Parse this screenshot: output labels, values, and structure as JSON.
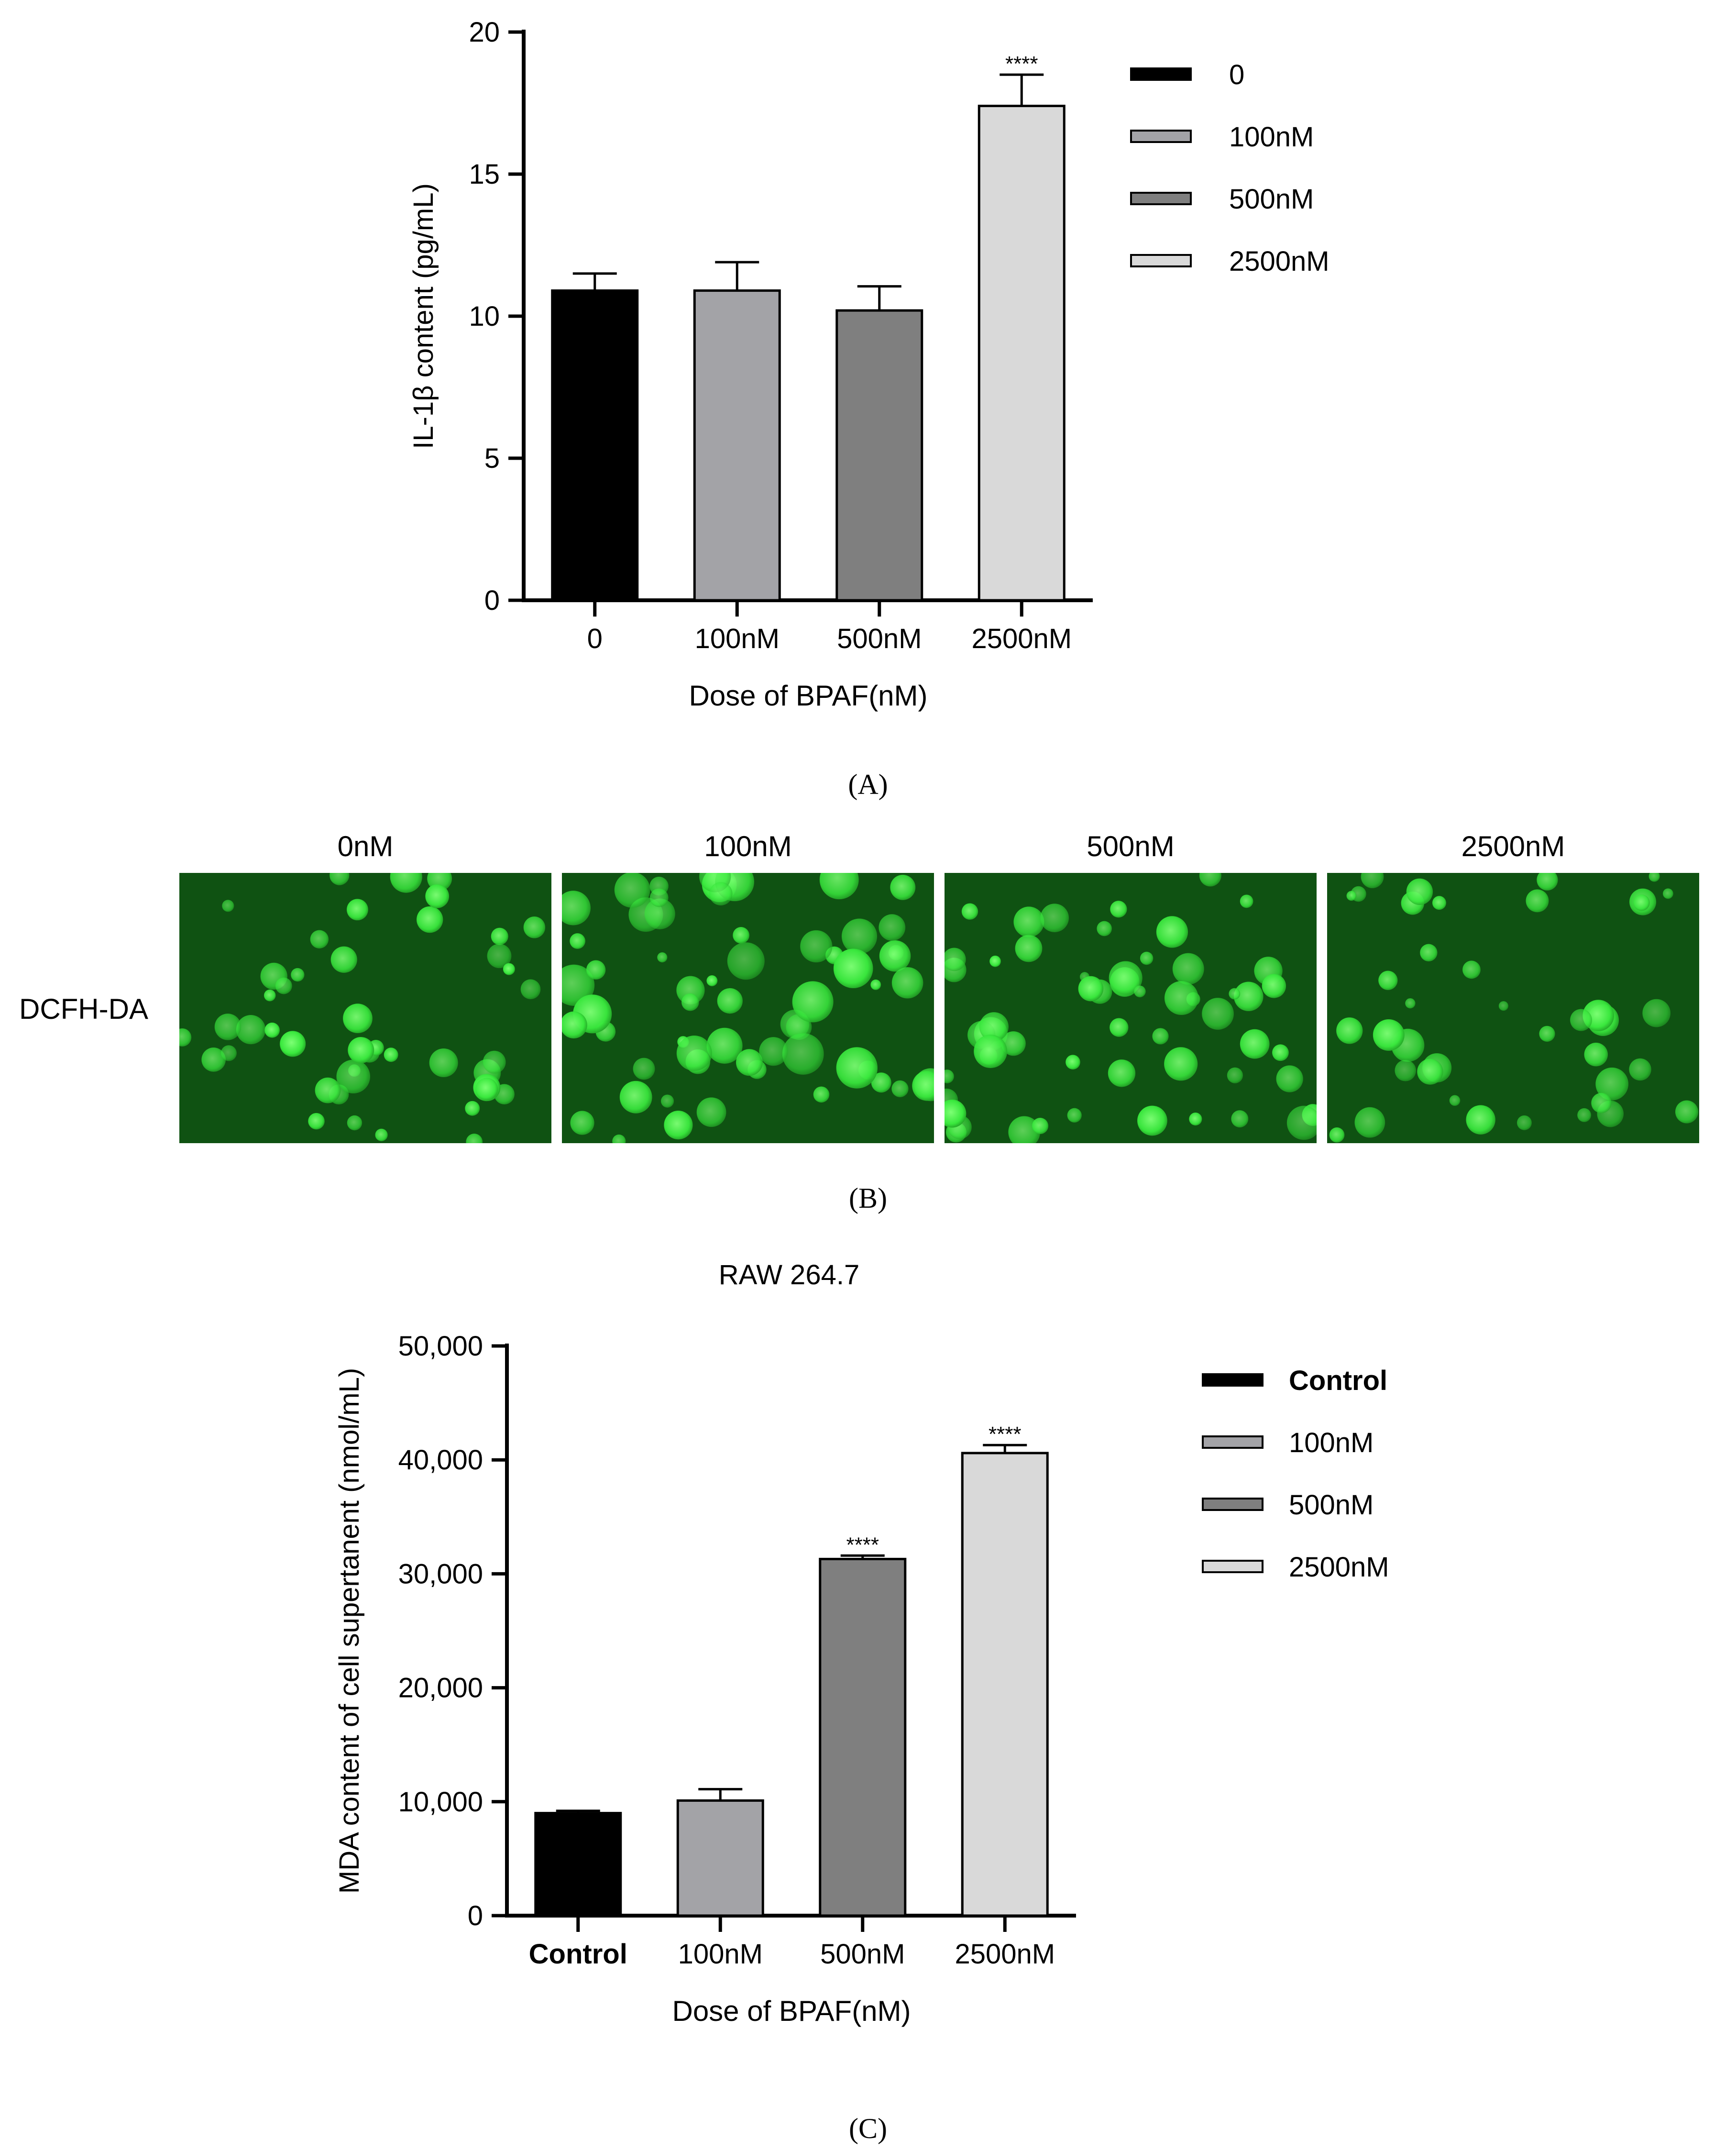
{
  "chart_data": [
    {
      "panel": "A",
      "type": "bar",
      "categories": [
        "0",
        "100nM",
        "500nM",
        "2500nM"
      ],
      "values": [
        10.9,
        10.9,
        10.2,
        17.4
      ],
      "errors": [
        0.6,
        1.0,
        0.85,
        1.1
      ],
      "significance": [
        "",
        "",
        "",
        "****"
      ],
      "colors": [
        "#000000",
        "#a3a3a7",
        "#7f7f7f",
        "#d9d9d9"
      ],
      "xlabel": "Dose of BPAF(nM)",
      "ylabel": "IL-1β content (pg/mL)",
      "ylim": [
        0,
        20
      ],
      "yticks": [
        0,
        5,
        10,
        15,
        20
      ],
      "ytick_labels": [
        "0",
        "5",
        "10",
        "15",
        "20"
      ],
      "legend": [
        "0",
        "100nM",
        "500nM",
        "2500nM"
      ],
      "legend_position": "right",
      "caption": "(A)"
    },
    {
      "panel": "C",
      "type": "bar",
      "title": "RAW 264.7",
      "categories": [
        "Control",
        "100nM",
        "500nM",
        "2500nM"
      ],
      "values": [
        9000,
        10100,
        31300,
        40600
      ],
      "errors": [
        200,
        1000,
        300,
        700
      ],
      "significance": [
        "",
        "",
        "****",
        "****"
      ],
      "colors": [
        "#000000",
        "#a3a3a7",
        "#7f7f7f",
        "#d9d9d9"
      ],
      "xlabel": "Dose of BPAF(nM)",
      "ylabel": "MDA content of cell supertanent (nmol/mL)",
      "ylim": [
        0,
        50000
      ],
      "yticks": [
        0,
        10000,
        20000,
        30000,
        40000,
        50000
      ],
      "ytick_labels": [
        "0",
        "10,000",
        "20,000",
        "30,000",
        "40,000",
        "50,000"
      ],
      "legend": [
        "Control",
        "100nM",
        "500nM",
        "2500nM"
      ],
      "legend_position": "right",
      "caption": "(C)"
    }
  ],
  "panel_b": {
    "row_label": "DCFH-DA",
    "column_labels": [
      "0nM",
      "100nM",
      "500nM",
      "2500nM"
    ],
    "caption": "(B)",
    "background_color": "#0f5212",
    "cell_color": "#39e83d"
  }
}
